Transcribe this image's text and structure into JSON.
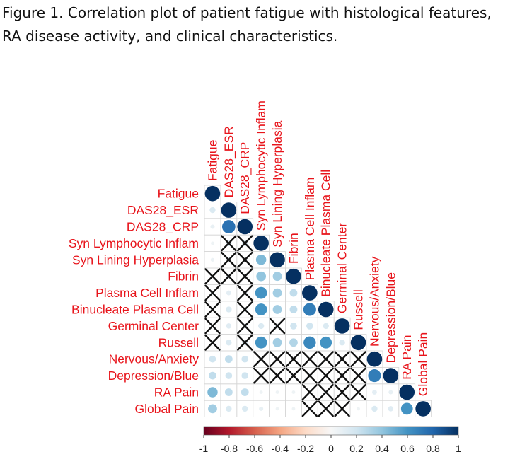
{
  "caption": {
    "line1": "Figure 1. Correlation plot of patient fatigue with histological features,",
    "line2": "RA disease activity, and clinical characteristics."
  },
  "chart_data": {
    "type": "heatmap",
    "title": "",
    "variables": [
      "Fatigue",
      "DAS28_ESR",
      "DAS28_CRP",
      "Syn Lymphocytic Inflam",
      "Syn Lining Hyperplasia",
      "Fibrin",
      "Plasma Cell Inflam",
      "Binucleate Plasma Cell",
      "Germinal Center",
      "Russell",
      "Nervous/Anxiety",
      "Depression/Blue",
      "RA Pain",
      "Global Pain"
    ],
    "label_color": "#e8141b",
    "color_low": "#67001f",
    "color_mid": "#f7f7f7",
    "color_high": "#053061",
    "colorbar_range": [
      -1,
      1
    ],
    "colorbar_ticks": [
      "-1",
      "-0.8",
      "-0.6",
      "-0.4",
      "-0.2",
      "0",
      "0.2",
      "0.4",
      "0.6",
      "0.8",
      "1"
    ],
    "correlations": [
      [
        1.0
      ],
      [
        0.15,
        1.0
      ],
      [
        0.08,
        0.75,
        1.0
      ],
      [
        0.05,
        0.15,
        0.15,
        1.0
      ],
      [
        0.06,
        0.1,
        0.1,
        0.45,
        1.0
      ],
      [
        0.05,
        0.12,
        0.05,
        0.4,
        0.35,
        1.0
      ],
      [
        0.08,
        0.1,
        0.1,
        0.6,
        0.35,
        0.25,
        1.0
      ],
      [
        0.05,
        0.15,
        0.1,
        0.6,
        0.35,
        0.25,
        0.7,
        1.0
      ],
      [
        0.05,
        0.12,
        0.1,
        0.15,
        0.1,
        0.2,
        0.2,
        0.15,
        1.0
      ],
      [
        0.05,
        0.15,
        0.15,
        0.6,
        0.35,
        0.3,
        0.65,
        0.6,
        0.15,
        1.0
      ],
      [
        0.2,
        0.25,
        0.2,
        0.05,
        0.05,
        0.05,
        0.05,
        0.05,
        0.05,
        0.05,
        1.0
      ],
      [
        0.25,
        0.2,
        0.2,
        0.05,
        0.05,
        0.05,
        0.05,
        0.05,
        0.05,
        0.05,
        0.7,
        1.0
      ],
      [
        0.45,
        0.25,
        0.25,
        0.05,
        0.05,
        0.05,
        0.05,
        0.05,
        0.05,
        0.05,
        0.1,
        0.08,
        1.0
      ],
      [
        0.35,
        0.15,
        0.15,
        0.08,
        0.05,
        0.05,
        0.08,
        0.05,
        0.05,
        0.05,
        0.15,
        0.12,
        0.6,
        1.0
      ]
    ],
    "not_significant": [
      [
        3,
        1
      ],
      [
        3,
        2
      ],
      [
        4,
        1
      ],
      [
        4,
        2
      ],
      [
        5,
        0
      ],
      [
        5,
        1
      ],
      [
        5,
        2
      ],
      [
        6,
        0
      ],
      [
        6,
        2
      ],
      [
        7,
        0
      ],
      [
        7,
        2
      ],
      [
        8,
        0
      ],
      [
        8,
        2
      ],
      [
        8,
        4
      ],
      [
        9,
        0
      ],
      [
        9,
        2
      ],
      [
        10,
        3
      ],
      [
        10,
        4
      ],
      [
        10,
        5
      ],
      [
        10,
        6
      ],
      [
        10,
        7
      ],
      [
        10,
        8
      ],
      [
        10,
        9
      ],
      [
        11,
        3
      ],
      [
        11,
        4
      ],
      [
        11,
        5
      ],
      [
        11,
        6
      ],
      [
        11,
        7
      ],
      [
        11,
        8
      ],
      [
        11,
        9
      ],
      [
        12,
        6
      ],
      [
        12,
        7
      ],
      [
        12,
        8
      ],
      [
        12,
        9
      ],
      [
        13,
        6
      ],
      [
        13,
        7
      ],
      [
        13,
        8
      ]
    ]
  }
}
